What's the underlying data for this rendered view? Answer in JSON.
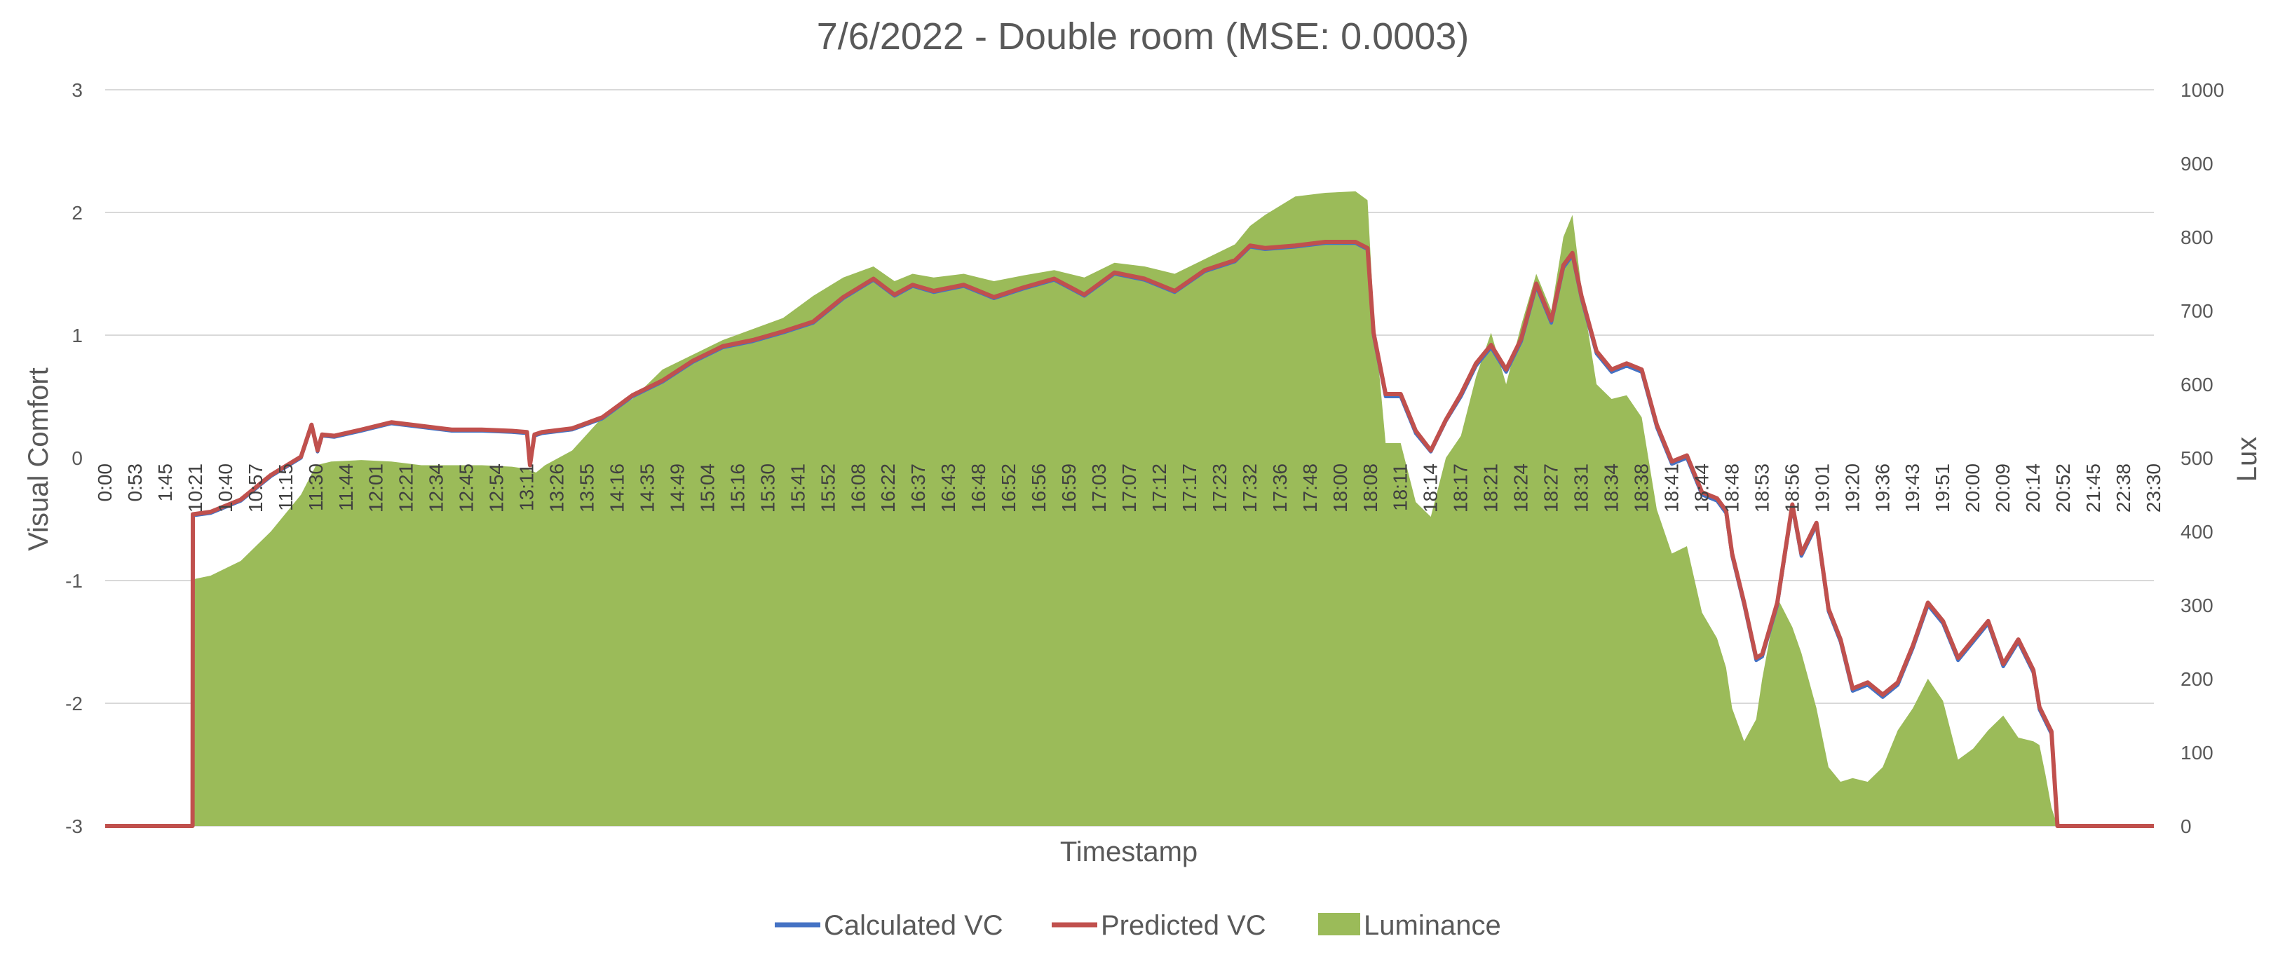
{
  "chart_data": {
    "type": "line",
    "title": "7/6/2022 - Double room (MSE: 0.0003)",
    "xlabel": "Timestamp",
    "ylabel": "Visual Comfort",
    "y2label": "Lux",
    "ylim": [
      -3,
      3
    ],
    "y2lim": [
      0,
      1000
    ],
    "y_ticks": [
      "3",
      "2",
      "1",
      "0",
      "-1",
      "-2",
      "-3"
    ],
    "y2_ticks": [
      "1000",
      "900",
      "800",
      "700",
      "600",
      "500",
      "400",
      "300",
      "200",
      "100",
      "0"
    ],
    "x_tick_labels": [
      "0:00",
      "0:53",
      "1:45",
      "10:21",
      "10:40",
      "10:57",
      "11:15",
      "11:30",
      "11:44",
      "12:01",
      "12:21",
      "12:34",
      "12:45",
      "12:54",
      "13:11",
      "13:26",
      "13:55",
      "14:16",
      "14:35",
      "14:49",
      "15:04",
      "15:16",
      "15:30",
      "15:41",
      "15:52",
      "16:08",
      "16:22",
      "16:37",
      "16:43",
      "16:48",
      "16:52",
      "16:56",
      "16:59",
      "17:03",
      "17:07",
      "17:12",
      "17:17",
      "17:23",
      "17:32",
      "17:36",
      "17:48",
      "18:00",
      "18:08",
      "18:11",
      "18:14",
      "18:17",
      "18:21",
      "18:24",
      "18:27",
      "18:31",
      "18:34",
      "18:38",
      "18:41",
      "18:44",
      "18:48",
      "18:53",
      "18:56",
      "19:01",
      "19:20",
      "19:36",
      "19:43",
      "19:51",
      "20:00",
      "20:09",
      "20:14",
      "20:52",
      "21:45",
      "22:38",
      "23:30"
    ],
    "grid": true,
    "legend_position": "bottom",
    "series": [
      {
        "name": "Calculated VC",
        "axis": "left",
        "kind": "line",
        "color": "#4472c4",
        "x": [
          0,
          2.9,
          2.91,
          3.5,
          4.5,
          5.5,
          6.5,
          6.85,
          7.05,
          7.2,
          7.6,
          8.5,
          9.5,
          10.5,
          11.5,
          12.5,
          13.5,
          14.0,
          14.1,
          14.25,
          14.5,
          15.5,
          16.5,
          17.5,
          18.5,
          19.5,
          20.5,
          21.5,
          22.5,
          23.5,
          24.5,
          25.5,
          26.2,
          26.8,
          27.5,
          28.5,
          29.5,
          30.5,
          31.5,
          32.5,
          33.5,
          34.5,
          35.5,
          36.5,
          37.5,
          38.0,
          38.5,
          39.5,
          40.5,
          41.5,
          41.9,
          42.1,
          42.5,
          43.0,
          43.5,
          44.0,
          44.5,
          45.0,
          45.5,
          46.0,
          46.5,
          47.0,
          47.5,
          48.0,
          48.4,
          48.7,
          49.0,
          49.5,
          50.0,
          50.5,
          51.0,
          51.5,
          52.0,
          52.5,
          53.0,
          53.5,
          53.8,
          54.0,
          54.4,
          54.8,
          55.0,
          55.5,
          56.0,
          56.3,
          56.8,
          57.2,
          57.6,
          58.0,
          58.5,
          59.0,
          59.5,
          60.0,
          60.5,
          61.0,
          61.5,
          62.0,
          62.5,
          63.0,
          63.5,
          64.0,
          64.2,
          64.4,
          64.6,
          64.8,
          65.5,
          66.5,
          67.5,
          68.0
        ],
        "values": [
          -3,
          -3,
          -0.47,
          -0.45,
          -0.35,
          -0.15,
          0,
          0.26,
          0.05,
          0.18,
          0.17,
          0.22,
          0.28,
          0.25,
          0.22,
          0.22,
          0.21,
          0.2,
          -0.05,
          0.18,
          0.2,
          0.23,
          0.32,
          0.5,
          0.62,
          0.78,
          0.9,
          0.95,
          1.02,
          1.1,
          1.3,
          1.45,
          1.32,
          1.4,
          1.35,
          1.4,
          1.3,
          1.38,
          1.45,
          1.32,
          1.5,
          1.45,
          1.35,
          1.52,
          1.6,
          1.72,
          1.7,
          1.72,
          1.75,
          1.75,
          1.7,
          1.0,
          0.5,
          0.5,
          0.2,
          0.05,
          0.3,
          0.5,
          0.75,
          0.9,
          0.7,
          0.95,
          1.4,
          1.1,
          1.55,
          1.65,
          1.3,
          0.85,
          0.7,
          0.75,
          0.7,
          0.25,
          -0.05,
          0.0,
          -0.3,
          -0.35,
          -0.45,
          -0.8,
          -1.2,
          -1.65,
          -1.62,
          -1.2,
          -0.4,
          -0.8,
          -0.55,
          -1.25,
          -1.5,
          -1.9,
          -1.85,
          -1.95,
          -1.85,
          -1.55,
          -1.2,
          -1.35,
          -1.65,
          -1.5,
          -1.35,
          -1.7,
          -1.5,
          -1.75,
          -2.05,
          -2.15,
          -2.25,
          -3,
          -3,
          -3,
          -3,
          -3
        ]
      },
      {
        "name": "Predicted VC",
        "axis": "left",
        "kind": "line",
        "color": "#c0504d",
        "x": [
          0,
          2.9,
          2.91,
          3.5,
          4.5,
          5.5,
          6.5,
          6.85,
          7.05,
          7.2,
          7.6,
          8.5,
          9.5,
          10.5,
          11.5,
          12.5,
          13.5,
          14.0,
          14.1,
          14.25,
          14.5,
          15.5,
          16.5,
          17.5,
          18.5,
          19.5,
          20.5,
          21.5,
          22.5,
          23.5,
          24.5,
          25.5,
          26.2,
          26.8,
          27.5,
          28.5,
          29.5,
          30.5,
          31.5,
          32.5,
          33.5,
          34.5,
          35.5,
          36.5,
          37.5,
          38.0,
          38.5,
          39.5,
          40.5,
          41.5,
          41.9,
          42.1,
          42.5,
          43.0,
          43.5,
          44.0,
          44.5,
          45.0,
          45.5,
          46.0,
          46.5,
          47.0,
          47.5,
          48.0,
          48.4,
          48.7,
          49.0,
          49.5,
          50.0,
          50.5,
          51.0,
          51.5,
          52.0,
          52.5,
          53.0,
          53.5,
          53.8,
          54.0,
          54.4,
          54.8,
          55.0,
          55.5,
          56.0,
          56.3,
          56.8,
          57.2,
          57.6,
          58.0,
          58.5,
          59.0,
          59.5,
          60.0,
          60.5,
          61.0,
          61.5,
          62.0,
          62.5,
          63.0,
          63.5,
          64.0,
          64.2,
          64.4,
          64.6,
          64.8,
          65.5,
          66.5,
          67.5,
          68.0
        ],
        "values": [
          -3,
          -3,
          -0.46,
          -0.44,
          -0.34,
          -0.14,
          0.01,
          0.27,
          0.06,
          0.19,
          0.18,
          0.23,
          0.29,
          0.26,
          0.23,
          0.23,
          0.22,
          0.21,
          -0.06,
          0.19,
          0.21,
          0.24,
          0.33,
          0.51,
          0.63,
          0.79,
          0.91,
          0.96,
          1.03,
          1.11,
          1.31,
          1.46,
          1.33,
          1.41,
          1.36,
          1.41,
          1.31,
          1.39,
          1.46,
          1.33,
          1.51,
          1.46,
          1.36,
          1.53,
          1.61,
          1.73,
          1.71,
          1.73,
          1.76,
          1.76,
          1.71,
          1.02,
          0.52,
          0.52,
          0.22,
          0.06,
          0.31,
          0.52,
          0.77,
          0.92,
          0.72,
          0.97,
          1.42,
          1.12,
          1.57,
          1.67,
          1.32,
          0.87,
          0.72,
          0.77,
          0.72,
          0.27,
          -0.03,
          0.02,
          -0.28,
          -0.33,
          -0.43,
          -0.78,
          -1.18,
          -1.63,
          -1.6,
          -1.18,
          -0.38,
          -0.78,
          -0.53,
          -1.23,
          -1.48,
          -1.88,
          -1.83,
          -1.93,
          -1.83,
          -1.53,
          -1.18,
          -1.33,
          -1.63,
          -1.48,
          -1.33,
          -1.68,
          -1.48,
          -1.73,
          -2.03,
          -2.13,
          -2.23,
          -3,
          -3,
          -3,
          -3,
          -3
        ]
      },
      {
        "name": "Luminance",
        "axis": "right",
        "kind": "area",
        "color": "#9bbb59",
        "x": [
          0,
          2.9,
          2.91,
          3.5,
          4.5,
          5.5,
          6.5,
          7.0,
          7.5,
          8.5,
          9.5,
          10.5,
          11.5,
          12.5,
          13.5,
          14.0,
          14.3,
          14.6,
          15.5,
          16.5,
          17.5,
          18.5,
          19.5,
          20.5,
          21.5,
          22.5,
          23.5,
          24.5,
          25.5,
          26.2,
          26.8,
          27.5,
          28.5,
          29.5,
          30.5,
          31.5,
          32.5,
          33.5,
          34.5,
          35.5,
          36.5,
          37.5,
          38.0,
          38.5,
          39.5,
          40.5,
          41.5,
          41.9,
          42.1,
          42.5,
          43.0,
          43.5,
          44.0,
          44.5,
          45.0,
          45.5,
          46.0,
          46.5,
          47.0,
          47.5,
          48.0,
          48.4,
          48.7,
          49.0,
          49.5,
          50.0,
          50.5,
          51.0,
          51.5,
          52.0,
          52.5,
          53.0,
          53.5,
          53.8,
          54.0,
          54.4,
          54.8,
          55.0,
          55.5,
          56.0,
          56.3,
          56.8,
          57.2,
          57.6,
          58.0,
          58.5,
          59.0,
          59.5,
          60.0,
          60.5,
          61.0,
          61.5,
          62.0,
          62.5,
          63.0,
          63.5,
          64.0,
          64.2,
          64.4,
          64.6,
          64.8,
          65.5,
          66.5,
          67.5,
          68.0
        ],
        "values": [
          0,
          0,
          335,
          340,
          360,
          400,
          450,
          490,
          495,
          497,
          495,
          490,
          490,
          490,
          488,
          485,
          480,
          490,
          510,
          555,
          580,
          620,
          640,
          660,
          675,
          690,
          720,
          745,
          760,
          740,
          750,
          745,
          750,
          740,
          748,
          755,
          745,
          765,
          760,
          750,
          770,
          790,
          815,
          830,
          855,
          860,
          862,
          850,
          700,
          520,
          520,
          440,
          420,
          500,
          530,
          610,
          670,
          600,
          680,
          750,
          700,
          800,
          830,
          730,
          600,
          580,
          585,
          555,
          430,
          370,
          380,
          290,
          255,
          215,
          160,
          115,
          145,
          200,
          310,
          270,
          235,
          160,
          80,
          60,
          65,
          60,
          80,
          130,
          160,
          200,
          170,
          90,
          105,
          130,
          150,
          120,
          115,
          110,
          70,
          25,
          0,
          0,
          0,
          0,
          0
        ]
      }
    ]
  },
  "legend": [
    {
      "label": "Calculated VC",
      "color": "#4472c4",
      "shape": "line"
    },
    {
      "label": "Predicted VC",
      "color": "#c0504d",
      "shape": "line"
    },
    {
      "label": "Luminance",
      "color": "#9bbb59",
      "shape": "box"
    }
  ]
}
